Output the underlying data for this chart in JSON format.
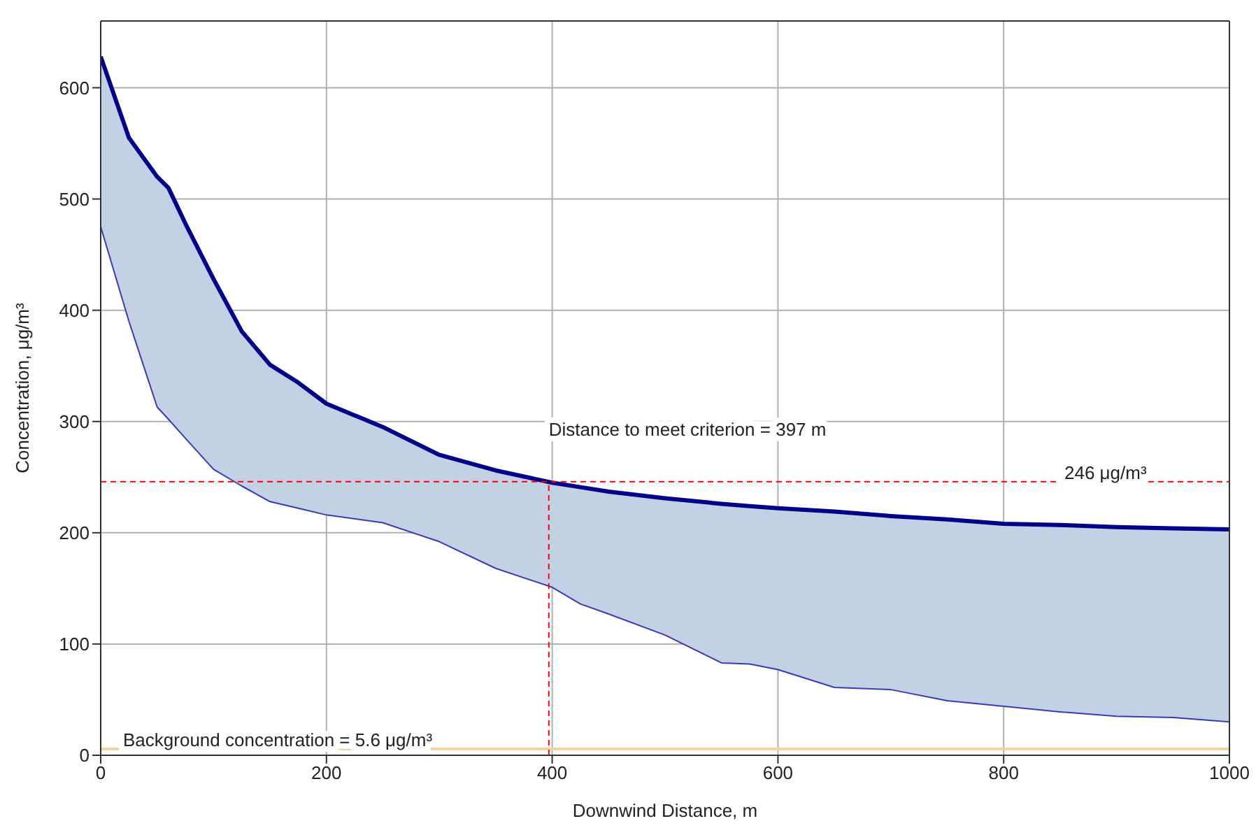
{
  "chart_data": {
    "type": "line",
    "xlabel": "Downwind Distance, m",
    "ylabel": "Concentration, μg/m³",
    "x": [
      0,
      25,
      50,
      60,
      75,
      100,
      125,
      150,
      175,
      200,
      250,
      300,
      350,
      400,
      425,
      450,
      500,
      550,
      575,
      600,
      650,
      700,
      750,
      800,
      850,
      900,
      950,
      1000
    ],
    "series": [
      {
        "color": "#00008b",
        "values": [
          628,
          555,
          520,
          510,
          478,
          428,
          381,
          351,
          335,
          316,
          295,
          270,
          256,
          245,
          241,
          237,
          231,
          226,
          224,
          222,
          219,
          215,
          212,
          208,
          207,
          205,
          204,
          203
        ],
        "lower": [
          475,
          390,
          313,
          302,
          285,
          257,
          242,
          228,
          222,
          216,
          209,
          192,
          168,
          151,
          136,
          127,
          108,
          83,
          82,
          77,
          61,
          59,
          49,
          44,
          39,
          35,
          34,
          30
        ],
        "upper": [
          628,
          555,
          520,
          510,
          478,
          428,
          381,
          351,
          335,
          316,
          295,
          270,
          256,
          245,
          241,
          237,
          231,
          226,
          224,
          222,
          219,
          215,
          212,
          208,
          207,
          205,
          204,
          203
        ]
      },
      {
        "color": "#3a3ab8",
        "values": [
          475,
          390,
          313,
          302,
          285,
          257,
          242,
          228,
          222,
          216,
          209,
          192,
          168,
          151,
          136,
          127,
          108,
          83,
          82,
          77,
          61,
          59,
          49,
          44,
          39,
          35,
          34,
          30
        ]
      }
    ],
    "xlim": [
      0,
      1000
    ],
    "xticks": [
      0,
      200,
      400,
      600,
      800,
      1000
    ],
    "ylim": [
      0,
      660
    ],
    "yticks": [
      0,
      100,
      200,
      300,
      400,
      500,
      600
    ],
    "ref_lines": [
      {
        "axis": "y",
        "value": 246,
        "label": "246 μg/m³",
        "color": "#ff0000",
        "line_style": "dashed"
      },
      {
        "axis": "x",
        "value": 397,
        "label": "Distance to meet criterion = 397 m",
        "color": "#ff0000",
        "line_style": "dashed"
      },
      {
        "axis": "y",
        "value": 5.6,
        "label": "Background concentration = 5.6 μg/m³",
        "color": "#f5d49a",
        "line_style": "solid"
      }
    ],
    "grid": true,
    "legend": false,
    "marker": "none",
    "line_style": "solid"
  }
}
